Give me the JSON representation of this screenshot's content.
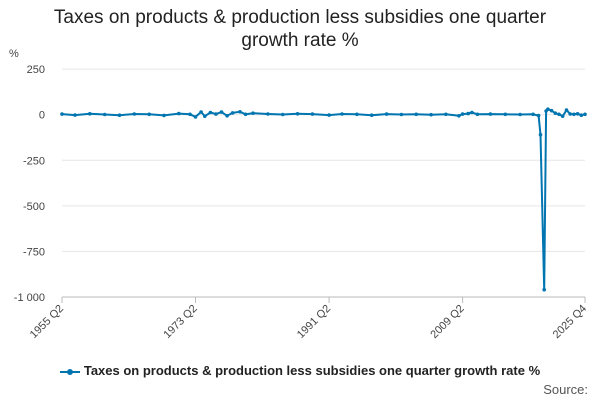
{
  "chart_data": {
    "type": "line",
    "title_lines": [
      "Taxes on products & production less subsidies one quarter",
      "growth rate %"
    ],
    "unit_label": "%",
    "ylim": [
      -1000,
      300
    ],
    "y_ticks": [
      250,
      0,
      -250,
      -500,
      -750,
      -1000
    ],
    "y_tick_labels": [
      "250",
      "0",
      "-250",
      "-500",
      "-750",
      "-1 000"
    ],
    "x_tick_labels": [
      "1955 Q2",
      "1973 Q2",
      "1991 Q2",
      "2009 Q2",
      "2025 Q4"
    ],
    "grid": "horizontal",
    "legend_position": "bottom",
    "series": [
      {
        "name": "Taxes on products & production less subsidies one quarter growth rate %",
        "color": "#0075b0",
        "points": [
          [
            "1955 Q2",
            3
          ],
          [
            "1957 Q1",
            -2
          ],
          [
            "1959 Q1",
            5
          ],
          [
            "1961 Q1",
            1
          ],
          [
            "1963 Q1",
            -3
          ],
          [
            "1965 Q1",
            4
          ],
          [
            "1967 Q1",
            2
          ],
          [
            "1969 Q1",
            -4
          ],
          [
            "1971 Q1",
            6
          ],
          [
            "1972 Q3",
            2
          ],
          [
            "1973 Q2",
            -12
          ],
          [
            "1974 Q1",
            15
          ],
          [
            "1974 Q3",
            -8
          ],
          [
            "1975 Q2",
            12
          ],
          [
            "1976 Q1",
            3
          ],
          [
            "1976 Q4",
            14
          ],
          [
            "1977 Q3",
            -6
          ],
          [
            "1978 Q2",
            10
          ],
          [
            "1979 Q2",
            16
          ],
          [
            "1980 Q1",
            2
          ],
          [
            "1981 Q1",
            8
          ],
          [
            "1983 Q1",
            4
          ],
          [
            "1985 Q1",
            1
          ],
          [
            "1987 Q1",
            5
          ],
          [
            "1989 Q1",
            3
          ],
          [
            "1991 Q2",
            -2
          ],
          [
            "1993 Q1",
            4
          ],
          [
            "1995 Q1",
            2
          ],
          [
            "1997 Q1",
            -3
          ],
          [
            "1999 Q1",
            3
          ],
          [
            "2001 Q1",
            1
          ],
          [
            "2003 Q1",
            2
          ],
          [
            "2005 Q1",
            0
          ],
          [
            "2007 Q1",
            2
          ],
          [
            "2008 Q4",
            -6
          ],
          [
            "2009 Q2",
            3
          ],
          [
            "2010 Q1",
            6
          ],
          [
            "2010 Q3",
            12
          ],
          [
            "2011 Q2",
            2
          ],
          [
            "2013 Q1",
            3
          ],
          [
            "2015 Q1",
            2
          ],
          [
            "2017 Q1",
            1
          ],
          [
            "2018 Q4",
            2
          ],
          [
            "2019 Q3",
            -5
          ],
          [
            "2019 Q4",
            -110
          ],
          [
            "2020 Q2",
            -960
          ],
          [
            "2020 Q3",
            20
          ],
          [
            "2020 Q4",
            30
          ],
          [
            "2021 Q2",
            22
          ],
          [
            "2021 Q4",
            8
          ],
          [
            "2022 Q2",
            2
          ],
          [
            "2022 Q4",
            -8
          ],
          [
            "2023 Q2",
            25
          ],
          [
            "2023 Q4",
            4
          ],
          [
            "2024 Q2",
            2
          ],
          [
            "2024 Q4",
            5
          ],
          [
            "2025 Q2",
            -3
          ],
          [
            "2025 Q4",
            2
          ]
        ]
      }
    ]
  },
  "source_label": "Source:"
}
